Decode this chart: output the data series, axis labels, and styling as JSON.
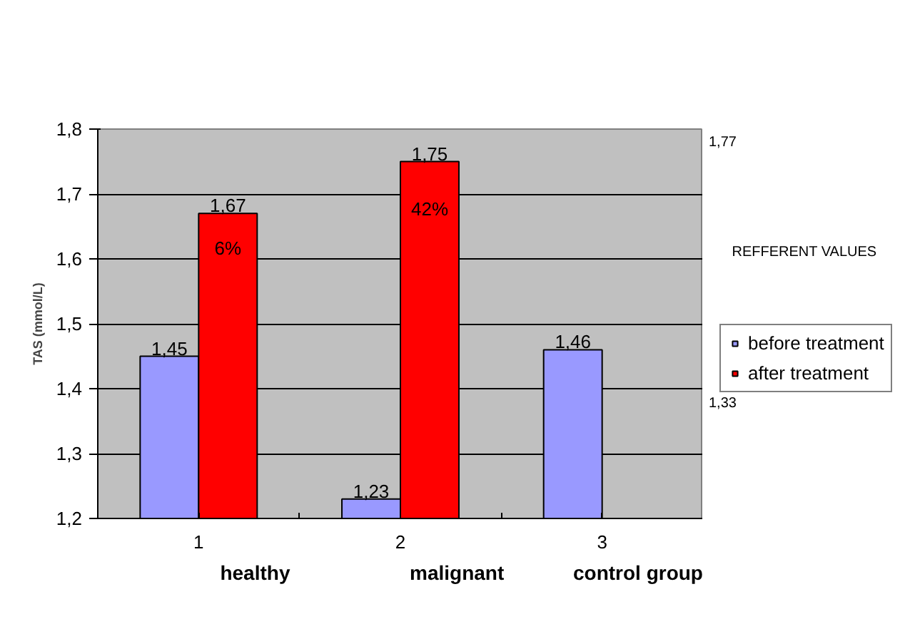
{
  "chart_data": {
    "type": "bar",
    "categories": [
      "1",
      "2",
      "3"
    ],
    "series": [
      {
        "name": "before treatment",
        "color": "#9999ff",
        "values": [
          1.45,
          1.23,
          1.46
        ],
        "value_labels": [
          "1,45",
          "1,23",
          "1,46"
        ]
      },
      {
        "name": "after treatment",
        "color": "#ff0000",
        "values": [
          1.67,
          1.75,
          null
        ],
        "value_labels": [
          "1,67",
          "1,75",
          null
        ]
      }
    ],
    "ylabel": "TAS (mmol/L)",
    "ylim": [
      1.2,
      1.8
    ],
    "yticks": [
      {
        "value": 1.2,
        "label": "1,2"
      },
      {
        "value": 1.3,
        "label": "1,3"
      },
      {
        "value": 1.4,
        "label": "1,4"
      },
      {
        "value": 1.5,
        "label": "1,5"
      },
      {
        "value": 1.6,
        "label": "1,6"
      },
      {
        "value": 1.7,
        "label": "1,7"
      },
      {
        "value": 1.8,
        "label": "1,8"
      }
    ],
    "grid": "y",
    "legend": "right",
    "annotations": [
      {
        "text": "6%",
        "x": "1",
        "y": 1.6
      },
      {
        "text": "42%",
        "x": "2",
        "y": 1.66
      },
      "healthy",
      "malignant",
      "control group",
      "1,77",
      "REFFERENT VALUES",
      "1,33"
    ]
  }
}
